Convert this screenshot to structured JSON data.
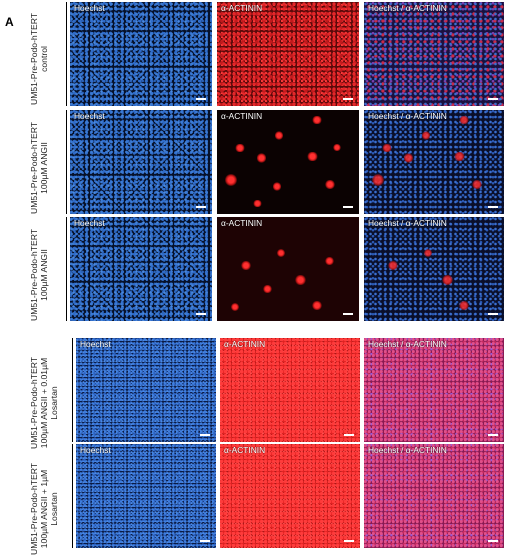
{
  "figure": {
    "panel_letter": "A",
    "channel_titles": {
      "hoechst": "Hoechst",
      "actinin": "α-ACTININ",
      "merge": "Hoechst / α-ACTININ"
    },
    "rows": [
      {
        "label_lines": [
          "UM51-Pre-Podo-hTERT",
          "control"
        ]
      },
      {
        "label_lines": [
          "UM51-Pre-Podo-hTERT",
          "100µM ANGII"
        ]
      },
      {
        "label_lines": [
          "UM51-Pre-Podo-hTERT",
          "100µM ANGII"
        ]
      },
      {
        "label_lines": [
          "UM51-Pre-Podo-hTERT",
          "100µM ANGII + 0.01µM",
          "Losartan"
        ]
      },
      {
        "label_lines": [
          "UM51-Pre-Podo-hTERT",
          "100µM ANGII + 1µM",
          "Losartan"
        ]
      }
    ]
  }
}
